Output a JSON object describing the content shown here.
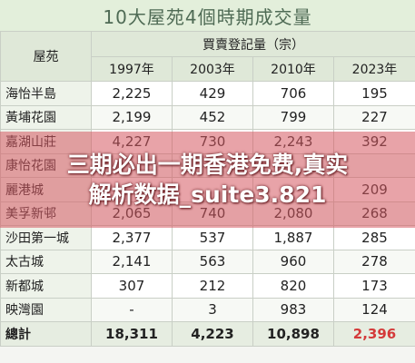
{
  "title": "10大屋苑4個時期成交量",
  "table": {
    "corner_header": "屋苑",
    "group_header": "買賣登記量（宗）",
    "years": [
      "1997年",
      "2003年",
      "2010年",
      "2023年"
    ],
    "rows": [
      {
        "name": "海怡半島",
        "values": [
          "2,225",
          "429",
          "706",
          "195"
        ]
      },
      {
        "name": "黃埔花園",
        "values": [
          "2,199",
          "452",
          "799",
          "227"
        ]
      },
      {
        "name": "嘉湖山莊",
        "values": [
          "4,227",
          "730",
          "2,243",
          "392"
        ]
      },
      {
        "name": "康怡花園",
        "values": [
          "",
          "",
          "",
          ""
        ]
      },
      {
        "name": "麗港城",
        "values": [
          "",
          "",
          "",
          "209"
        ]
      },
      {
        "name": "美孚新邨",
        "values": [
          "2,065",
          "740",
          "2,080",
          "268"
        ]
      },
      {
        "name": "沙田第一城",
        "values": [
          "2,377",
          "537",
          "1,887",
          "285"
        ]
      },
      {
        "name": "太古城",
        "values": [
          "2,141",
          "563",
          "960",
          "278"
        ]
      },
      {
        "name": "新都城",
        "values": [
          "307",
          "212",
          "820",
          "173"
        ]
      },
      {
        "name": "映灣園",
        "values": [
          "-",
          "3",
          "983",
          "124"
        ]
      }
    ],
    "total": {
      "name": "總計",
      "values": [
        "18,311",
        "4,223",
        "10,898",
        "2,396"
      ]
    }
  },
  "overlay": {
    "line1": "三期必出一期香港免费,真实",
    "line2": "解析数据_suite3.821"
  },
  "colors": {
    "title_bg": "#e3efdb",
    "header_bg": "#dfe8d8",
    "overlay": "#d65860",
    "highlight_total": "#d43a3a"
  }
}
